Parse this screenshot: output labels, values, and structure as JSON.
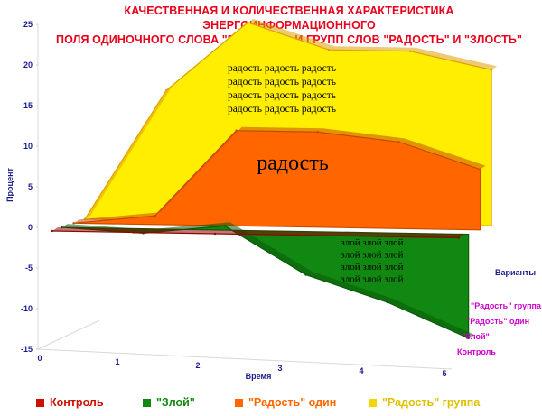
{
  "title_line1": "КАЧЕСТВЕННАЯ И КОЛИЧЕСТВЕННАЯ ХАРАКТЕРИСТИКА ЭНЕРГОИНФОРМАЦИОННОГО",
  "title_line2": "ПОЛЯ ОДИНОЧНОГО СЛОВА \"РАДОСТЬ\", И ГРУПП СЛОВ \"РАДОСТЬ\" И \"ЗЛОСТЬ\"",
  "colors": {
    "control": "#cc1100",
    "evil": "#118811",
    "joy_single": "#ff6600",
    "joy_group": "#ffee00",
    "title": "#e8001c",
    "axis_text": "#1a1a8c",
    "series_axis_text": "#cc00cc"
  },
  "chart_data": {
    "type": "area",
    "subtype": "3d-area",
    "xlabel": "Время",
    "ylabel": "Процент",
    "zlabel": "Варианты",
    "x_ticks": [
      "0",
      "1",
      "2",
      "3",
      "4",
      "5"
    ],
    "y_ticks": [
      "25",
      "20",
      "15",
      "10",
      "5",
      "0",
      "-5",
      "-10",
      "-15"
    ],
    "ylim": [
      -15,
      25
    ],
    "x": [
      0,
      1,
      2,
      3,
      4,
      5
    ],
    "legend_position": "bottom",
    "series": [
      {
        "name": "Контроль",
        "values": [
          0,
          0,
          0,
          0,
          0,
          0
        ]
      },
      {
        "name": "\"Злой\"",
        "values": [
          0,
          -0.5,
          0.5,
          -5,
          -8,
          -12
        ]
      },
      {
        "name": "\"Радость\" один",
        "values": [
          0,
          1,
          11,
          11,
          10,
          7
        ]
      },
      {
        "name": "\"Радость\" группа",
        "values": [
          0,
          15,
          23,
          20,
          20,
          18
        ]
      }
    ],
    "annotations": {
      "joy_group_text": [
        "радость радость радость",
        "радость радость радость",
        "радость радость радость",
        "радость радость радость"
      ],
      "joy_single_text": "радость",
      "evil_text": [
        "злой злой злой",
        "злой злой злой",
        "злой злой злой",
        "злой злой злой"
      ]
    }
  }
}
